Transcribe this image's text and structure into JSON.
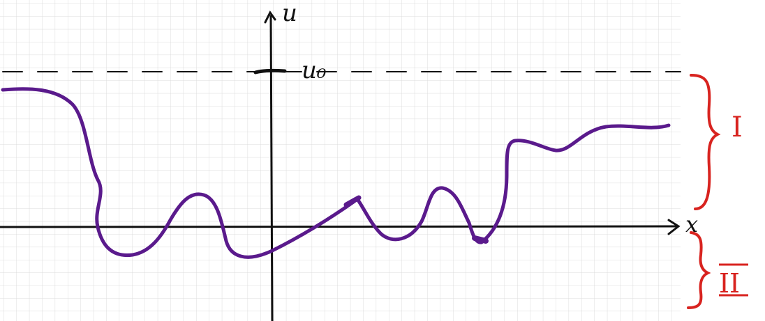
{
  "axes": {
    "x_label": "x",
    "y_label": "u"
  },
  "level_label": "u₀",
  "regions": [
    {
      "label": "I"
    },
    {
      "label": "II"
    }
  ],
  "colors": {
    "grid": "#d9d9d9",
    "axis": "#111111",
    "curve": "#5a1a8c",
    "regions": "#d8231f",
    "dashed": "#111111"
  }
}
